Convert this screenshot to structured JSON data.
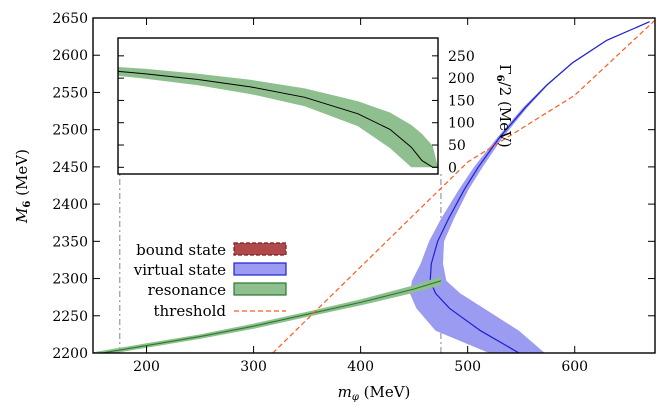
{
  "chart_data": {
    "type": "line",
    "xlabel_var": "m",
    "xlabel_sub": "φ",
    "xlabel_unit": " (MeV)",
    "ylabel_var": "M",
    "ylabel_sub": "6",
    "ylabel_unit": " (MeV)",
    "xlim": [
      150,
      675
    ],
    "ylim": [
      2200,
      2650
    ],
    "xticks": [
      200,
      300,
      400,
      500,
      600
    ],
    "yticks": [
      2200,
      2250,
      2300,
      2350,
      2400,
      2450,
      2500,
      2550,
      2600,
      2650
    ],
    "grid": false,
    "legend_position": "center-left",
    "colors": {
      "bound_state_fill": "#b04a4a",
      "bound_state_edge": "#7a1f1f",
      "virtual_state_fill": "#9b9bf2",
      "virtual_state_edge": "#2020d0",
      "resonance_fill": "#8fbf8f",
      "resonance_edge": "#2a7a2a",
      "threshold": "#ff5a1f",
      "marker_line": "#999999"
    },
    "legend": [
      {
        "key": "bound",
        "label": "bound state"
      },
      {
        "key": "virtual",
        "label": "virtual state"
      },
      {
        "key": "resonance",
        "label": "resonance"
      },
      {
        "key": "threshold",
        "label": "threshold"
      }
    ],
    "vertical_markers_x": [
      175,
      475
    ],
    "series": [
      {
        "name": "threshold",
        "style": "dashed",
        "x": [
          318,
          400,
          500,
          600,
          675
        ],
        "y": [
          2200,
          2315.6,
          2456.4,
          2546.1,
          2647
        ]
      },
      {
        "name": "resonance",
        "band": true,
        "x": [
          150,
          200,
          250,
          300,
          350,
          400,
          450,
          475
        ],
        "y": [
          2198,
          2210,
          2222,
          2236,
          2252,
          2268,
          2286,
          2297
        ],
        "half_width": [
          3,
          3,
          3,
          3.5,
          3.5,
          4,
          5,
          6
        ]
      },
      {
        "name": "virtual state",
        "band": true,
        "y": [
          2200,
          2230,
          2260,
          2280,
          2297,
          2320,
          2350,
          2380,
          2420,
          2450,
          2490,
          2530,
          2560,
          2590,
          2620,
          2645
        ],
        "x_center": [
          548,
          512,
          483,
          470,
          465,
          466,
          472,
          482,
          497,
          510,
          530,
          554,
          574,
          598,
          630,
          670
        ],
        "x_lower": [
          520,
          470,
          452,
          446,
          448,
          456,
          464,
          475,
          492,
          506,
          528,
          552,
          573,
          597,
          629,
          670
        ],
        "x_upper": [
          572,
          548,
          515,
          493,
          480,
          477,
          478,
          487,
          501,
          514,
          533,
          556,
          575,
          599,
          631,
          670
        ]
      }
    ],
    "inset": {
      "y2label_var": "Γ",
      "y2label_sub": "6",
      "y2label_unit": "/2 (MeV)",
      "xlim": [
        175,
        475
      ],
      "ylim": [
        -15,
        290
      ],
      "yticks": [
        0,
        50,
        100,
        150,
        200,
        250
      ],
      "series": [
        {
          "name": "resonance",
          "band": true,
          "x": [
            175,
            200,
            250,
            300,
            350,
            400,
            430,
            450,
            460,
            470,
            475
          ],
          "y": [
            215,
            210,
            197,
            180,
            157,
            120,
            85,
            45,
            15,
            0,
            0
          ],
          "y_lower": [
            205,
            199,
            184,
            164,
            137,
            92,
            43,
            0,
            0,
            0,
            0
          ],
          "y_upper": [
            225,
            221,
            210,
            196,
            177,
            148,
            123,
            95,
            75,
            48,
            0
          ]
        }
      ]
    }
  }
}
